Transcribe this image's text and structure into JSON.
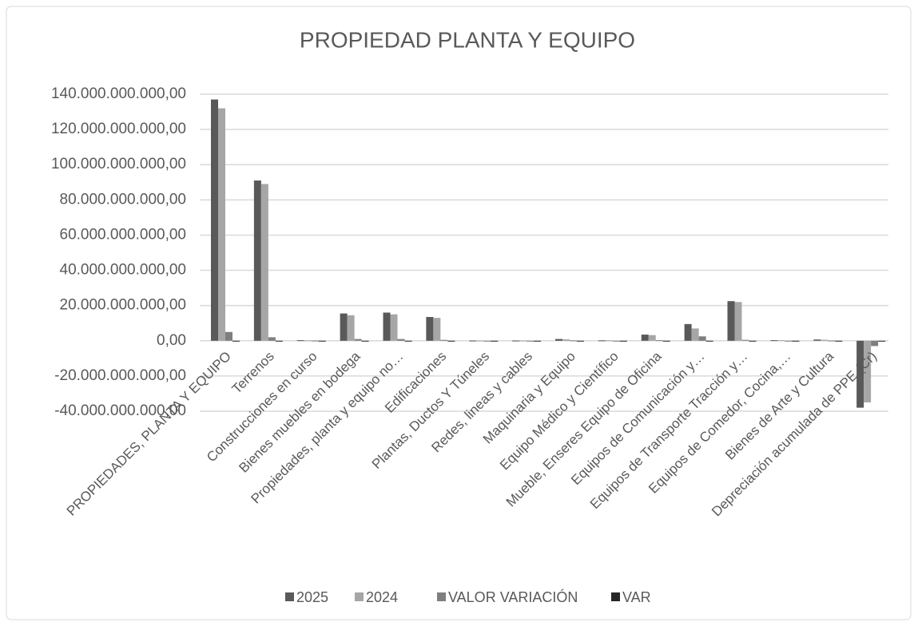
{
  "chart_data": {
    "type": "bar",
    "title": "PROPIEDAD PLANTA Y EQUIPO",
    "categories": [
      "PROPIEDADES, PLANTA Y EQUIPO",
      "Terrenos",
      "Construcciones en curso",
      "Bienes muebles en bodega",
      "Propiedades, planta y equipo no…",
      "Edificaciones",
      "Plantas, Ductos Y Túneles",
      "Redes, lineas y cables",
      "Maquinaria y Equipo",
      "Equipo Médico y Científico",
      "Mueble, Enseres Equipo de Oficina",
      "Equipos de Comunicación y…",
      "Equipos de Transporte Tracción y…",
      "Equipos de Comedor, Cocina,…",
      "Bienes de Arte y Cultura",
      "Depreciación acumulada de PPE (Cr)"
    ],
    "series": [
      {
        "name": "2025",
        "color": "#595959",
        "values": [
          137000000000,
          91000000000,
          300000000,
          15500000000,
          16000000000,
          13500000000,
          100000000,
          100000000,
          1000000000,
          200000000,
          3500000000,
          9500000000,
          22500000000,
          300000000,
          700000000,
          -38000000000
        ]
      },
      {
        "name": "2024",
        "color": "#a6a6a6",
        "values": [
          132000000000,
          89000000000,
          200000000,
          14500000000,
          15000000000,
          13000000000,
          100000000,
          100000000,
          800000000,
          200000000,
          3200000000,
          7000000000,
          22000000000,
          300000000,
          600000000,
          -35000000000
        ]
      },
      {
        "name": "VALOR VARIACIÓN",
        "color": "#7f7f7f",
        "values": [
          5000000000,
          2000000000,
          100000000,
          1000000000,
          1000000000,
          500000000,
          0,
          0,
          200000000,
          0,
          300000000,
          2500000000,
          500000000,
          0,
          100000000,
          -3000000000
        ]
      },
      {
        "name": "VAR",
        "color": "#262626",
        "values": [
          0,
          0,
          0,
          0,
          0,
          0,
          0,
          0,
          0,
          0,
          0,
          0,
          0,
          0,
          0,
          0
        ]
      }
    ],
    "ylim": [
      -40000000000,
      140000000000
    ],
    "yticks": [
      {
        "value": -40000000000,
        "label": "-40.000.000.000,00"
      },
      {
        "value": -20000000000,
        "label": "-20.000.000.000,00"
      },
      {
        "value": 0,
        "label": "0,00"
      },
      {
        "value": 20000000000,
        "label": "20.000.000.000,00"
      },
      {
        "value": 40000000000,
        "label": "40.000.000.000,00"
      },
      {
        "value": 60000000000,
        "label": "60.000.000.000,00"
      },
      {
        "value": 80000000000,
        "label": "80.000.000.000,00"
      },
      {
        "value": 100000000000,
        "label": "100.000.000.000,00"
      },
      {
        "value": 120000000000,
        "label": "120.000.000.000,00"
      },
      {
        "value": 140000000000,
        "label": "140.000.000.000,00"
      }
    ],
    "grid": true,
    "legend": "bottom"
  }
}
